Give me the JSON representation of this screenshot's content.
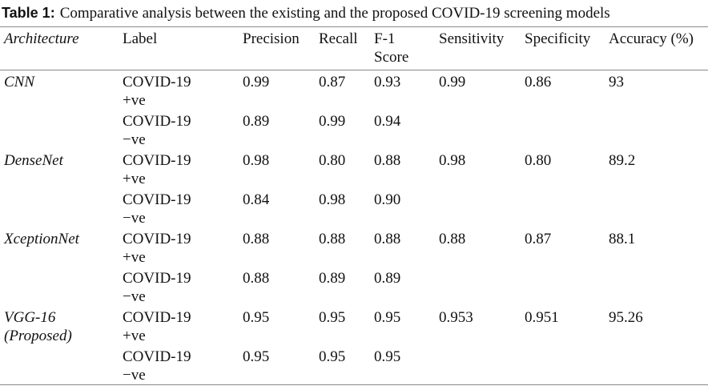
{
  "caption": {
    "label": "Table 1:",
    "text": "Comparative analysis between the existing and the proposed COVID-19 screening models"
  },
  "table": {
    "headers": [
      "Architecture",
      "Label",
      "Precision",
      "Recall",
      "F-1\nScore",
      "Sensitivity",
      "Specificity",
      "Accuracy (%)"
    ],
    "groups": [
      {
        "architecture": "CNN",
        "sensitivity": "0.99",
        "specificity": "0.86",
        "accuracy": "93",
        "rows": [
          {
            "label": "COVID-19\n+ve",
            "precision": "0.99",
            "recall": "0.87",
            "f1": "0.93"
          },
          {
            "label": "COVID-19\n−ve",
            "precision": "0.89",
            "recall": "0.99",
            "f1": "0.94"
          }
        ]
      },
      {
        "architecture": "DenseNet",
        "sensitivity": "0.98",
        "specificity": "0.80",
        "accuracy": "89.2",
        "rows": [
          {
            "label": "COVID-19\n+ve",
            "precision": "0.98",
            "recall": "0.80",
            "f1": "0.88"
          },
          {
            "label": "COVID-19\n−ve",
            "precision": "0.84",
            "recall": "0.98",
            "f1": "0.90"
          }
        ]
      },
      {
        "architecture": "XceptionNet",
        "sensitivity": "0.88",
        "specificity": "0.87",
        "accuracy": "88.1",
        "rows": [
          {
            "label": "COVID-19\n+ve",
            "precision": "0.88",
            "recall": "0.88",
            "f1": "0.88"
          },
          {
            "label": "COVID-19\n−ve",
            "precision": "0.88",
            "recall": "0.89",
            "f1": "0.89"
          }
        ]
      },
      {
        "architecture": "VGG-16\n(Proposed)",
        "sensitivity": "0.953",
        "specificity": "0.951",
        "accuracy": "95.26",
        "rows": [
          {
            "label": "COVID-19\n+ve",
            "precision": "0.95",
            "recall": "0.95",
            "f1": "0.95"
          },
          {
            "label": "COVID-19\n−ve",
            "precision": "0.95",
            "recall": "0.95",
            "f1": "0.95"
          }
        ]
      }
    ]
  }
}
